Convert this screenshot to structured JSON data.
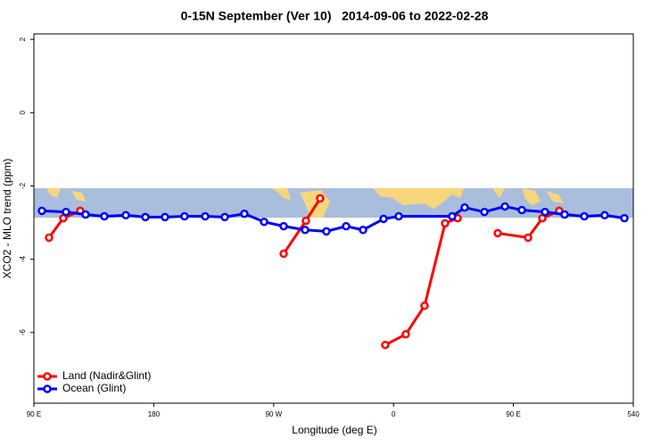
{
  "chart_data": {
    "type": "line",
    "title": "0-15N September (Ver 10)   2014-09-06 to 2022-02-28",
    "xlabel": "Longitude (deg E)",
    "ylabel": "XCO2 - MLO trend (ppm)",
    "xlim": [
      90,
      540
    ],
    "xticks": [
      {
        "value": 90,
        "label": "90 E"
      },
      180,
      {
        "value": 270,
        "label": "90 W"
      },
      {
        "value": 360,
        "label": "0"
      },
      {
        "value": 450,
        "label": "90 E"
      },
      540
    ],
    "ylim": [
      -7.93,
      2.15
    ],
    "yticks": [
      2,
      0,
      -2,
      -4,
      -6
    ],
    "legend": "bottom-left",
    "series": [
      {
        "name": "Land (Nadir&Glint)",
        "color": "#ff0000",
        "x": [
          101.4,
          112.1,
          124.8,
          null,
          277.5,
          294.2,
          304.9,
          null,
          353.8,
          369.2,
          383.3,
          398.7,
          408.1,
          null,
          438.2,
          461.0,
          471.7,
          484.4
        ],
        "values": [
          -3.41,
          -2.88,
          -2.68,
          null,
          -3.85,
          -2.95,
          -2.34,
          null,
          -6.34,
          -6.05,
          -5.27,
          -3.02,
          -2.88,
          null,
          -3.29,
          -3.41,
          -2.88,
          -2.68
        ]
      },
      {
        "name": "Ocean (Glint)",
        "color": "#0000ff",
        "x": [
          96.0,
          114.1,
          128.8,
          142.9,
          159.0,
          173.7,
          188.4,
          203.1,
          218.6,
          233.3,
          248.0,
          262.8,
          277.5,
          293.6,
          309.6,
          324.4,
          337.1,
          352.5,
          363.9,
          404.0,
          413.4,
          428.2,
          443.6,
          456.3,
          473.7,
          488.4,
          503.2,
          518.5,
          533.3
        ],
        "values": [
          -2.68,
          -2.71,
          -2.78,
          -2.83,
          -2.8,
          -2.85,
          -2.85,
          -2.83,
          -2.83,
          -2.85,
          -2.76,
          -2.98,
          -3.1,
          -3.2,
          -3.24,
          -3.1,
          -3.2,
          -2.9,
          -2.83,
          -2.83,
          -2.59,
          -2.71,
          -2.56,
          -2.66,
          -2.71,
          -2.78,
          -2.83,
          -2.8,
          -2.88
        ]
      }
    ]
  }
}
